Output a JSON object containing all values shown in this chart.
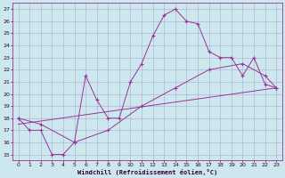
{
  "title": "",
  "xlabel": "Windchill (Refroidissement éolien,°C)",
  "ylabel": "",
  "background_color": "#cce8ee",
  "grid_color": "#aaaacc",
  "line_color": "#993399",
  "xlim_min": -0.5,
  "xlim_max": 23.5,
  "ylim_min": 14.5,
  "ylim_max": 27.5,
  "xticks": [
    0,
    1,
    2,
    3,
    4,
    5,
    6,
    7,
    8,
    9,
    10,
    11,
    12,
    13,
    14,
    15,
    16,
    17,
    18,
    19,
    20,
    21,
    22,
    23
  ],
  "yticks": [
    15,
    16,
    17,
    18,
    19,
    20,
    21,
    22,
    23,
    24,
    25,
    26,
    27
  ],
  "line1_x": [
    0,
    1,
    2,
    3,
    4,
    5,
    6,
    7,
    8,
    9,
    10,
    11,
    12,
    13,
    14,
    15,
    16,
    17,
    18,
    19,
    20,
    21,
    22,
    23
  ],
  "line1_y": [
    18,
    17,
    17,
    15,
    15,
    16,
    21.5,
    19.5,
    18,
    18,
    21,
    22.5,
    24.8,
    26.5,
    27,
    26,
    25.8,
    23.5,
    23,
    23,
    21.5,
    23,
    20.8,
    20.5
  ],
  "line2_x": [
    0,
    2,
    5,
    8,
    11,
    14,
    17,
    20,
    22,
    23
  ],
  "line2_y": [
    18,
    17.5,
    16,
    17,
    19,
    20.5,
    22,
    22.5,
    21.5,
    20.5
  ],
  "line3_x": [
    0,
    23
  ],
  "line3_y": [
    17.5,
    20.5
  ],
  "figsize": [
    3.2,
    2.0
  ],
  "dpi": 100
}
